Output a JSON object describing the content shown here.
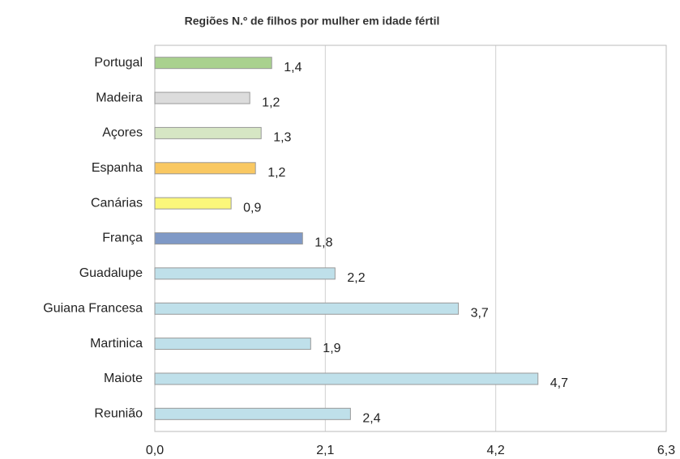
{
  "chart_data": {
    "type": "bar",
    "orientation": "horizontal",
    "title": "Regiões  N.º de filhos por mulher em idade fértil",
    "categories": [
      "Portugal",
      "Madeira",
      "Açores",
      "Espanha",
      "Canárias",
      "França",
      "Guadalupe",
      "Guiana Francesa",
      "Martinica",
      "Maiote",
      "Reunião"
    ],
    "values": [
      1.44,
      1.17,
      1.31,
      1.24,
      0.94,
      1.82,
      2.22,
      3.74,
      1.92,
      4.72,
      2.41
    ],
    "value_labels": [
      "1,4",
      "1,2",
      "1,3",
      "1,2",
      "0,9",
      "1,8",
      "2,2",
      "3,7",
      "1,9",
      "4,7",
      "2,4"
    ],
    "colors": [
      "#a9d18e",
      "#dcdcdc",
      "#d6e6c4",
      "#f9c862",
      "#fbf77a",
      "#7f99c6",
      "#bfe0ea",
      "#bfe0ea",
      "#bfe0ea",
      "#bfe0ea",
      "#bfe0ea"
    ],
    "xlim": [
      0,
      6.3
    ],
    "xticks": [
      {
        "value": 0,
        "label": "0,0"
      },
      {
        "value": 2.1,
        "label": "2,1"
      },
      {
        "value": 4.2,
        "label": "4,2"
      },
      {
        "value": 6.3,
        "label": "6,3"
      }
    ],
    "grid": true
  }
}
